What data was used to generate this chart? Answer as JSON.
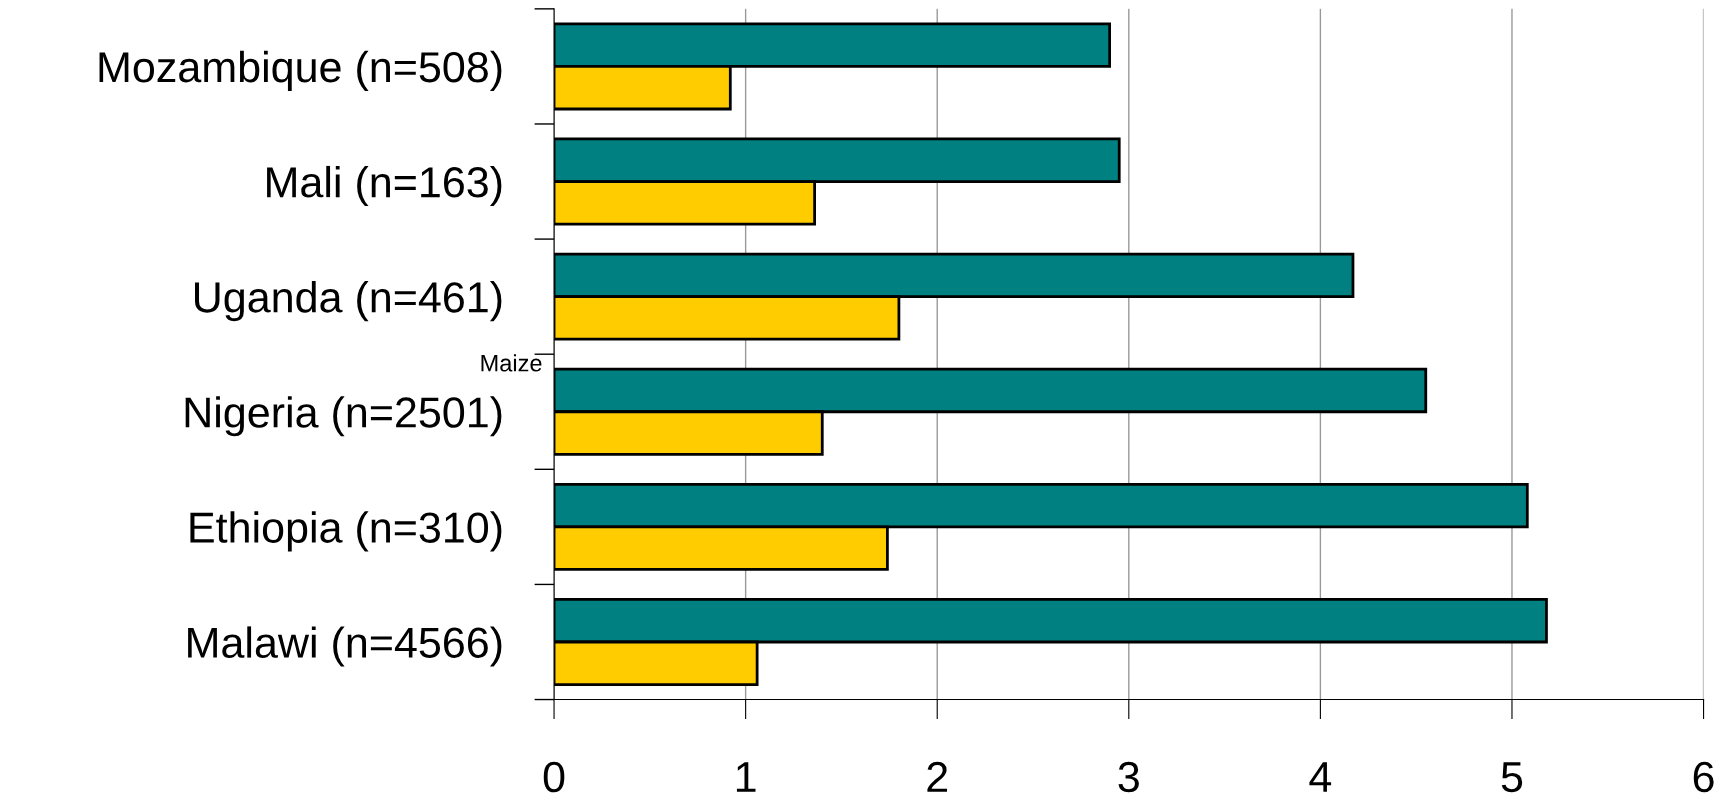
{
  "chart_data": {
    "type": "bar",
    "orientation": "horizontal",
    "categories": [
      "Mozambique (n=508)",
      "Mali (n=163)",
      "Uganda (n=461)",
      "Nigeria (n=2501)",
      "Ethiopia (n=310)",
      "Malawi (n=4566)"
    ],
    "series": [
      {
        "color": "#008080",
        "values": [
          2.9,
          2.95,
          4.17,
          4.55,
          5.08,
          5.18
        ]
      },
      {
        "color": "#ffcc00",
        "values": [
          0.92,
          1.36,
          1.8,
          1.4,
          1.74,
          1.06
        ]
      }
    ],
    "xlim": [
      0,
      6
    ],
    "xticks": [
      0,
      1,
      2,
      3,
      4,
      5,
      6
    ],
    "grid": "x",
    "legend": false,
    "annotations": [
      "Maize"
    ]
  }
}
